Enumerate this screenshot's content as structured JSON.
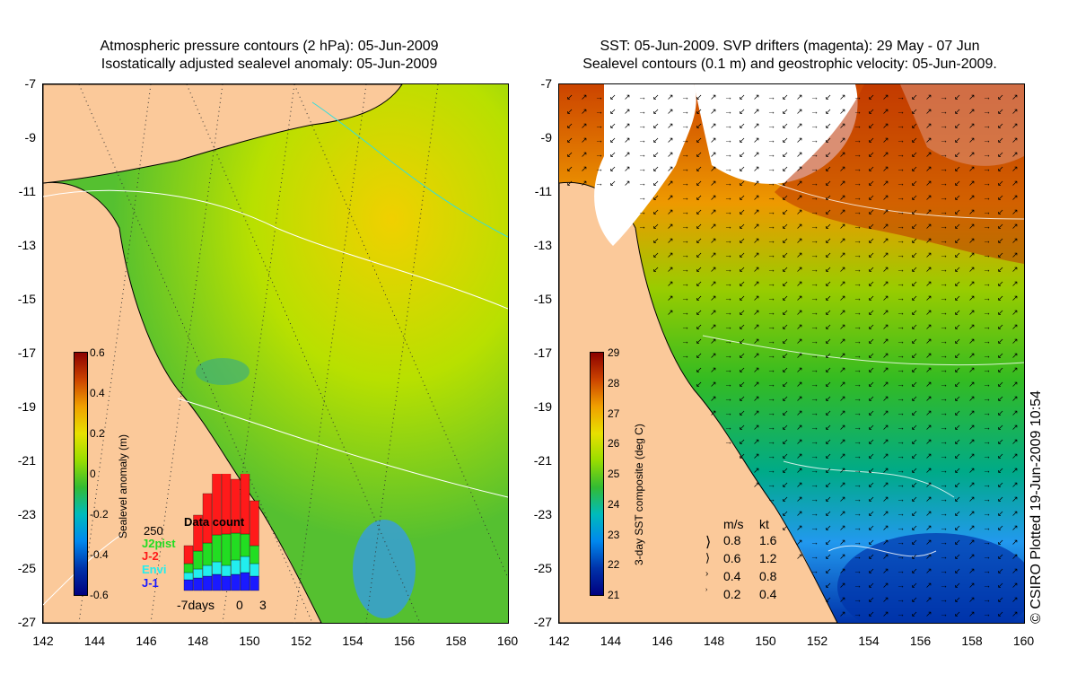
{
  "left": {
    "title_line1": "Atmospheric pressure contours (2 hPa): 05-Jun-2009",
    "title_line2": "Isostatically adjusted sealevel anomaly: 05-Jun-2009",
    "colorbar_label": "Sealevel anomaly (m)",
    "colorbar_ticks": [
      "0.6",
      "0.4",
      "0.2",
      "0",
      "-0.2",
      "-0.4",
      "-0.6"
    ],
    "inset": {
      "title": "Data count",
      "max_label": "250",
      "missions": [
        "J2pist",
        "J-2",
        "Envi",
        "J-1"
      ],
      "colors": {
        "J2pist": "#22dd22",
        "J-2": "#ff1a1a",
        "Envi": "#22eeee",
        "J-1": "#1a1aff"
      },
      "x_labels": [
        "-7days",
        "0",
        "3"
      ]
    }
  },
  "right": {
    "title_line1": "SST: 05-Jun-2009. SVP drifters (magenta): 29 May - 07 Jun",
    "title_line2": "Sealevel contours (0.1 m) and geostrophic velocity: 05-Jun-2009.",
    "colorbar_label": "3-day SST composite (deg C)",
    "colorbar_ticks": [
      "29",
      "28",
      "27",
      "26",
      "25",
      "24",
      "23",
      "22",
      "21"
    ],
    "vector_legend": {
      "header_ms": "m/s",
      "header_kt": "kt",
      "rows": [
        {
          "ms": "0.8",
          "kt": "1.6"
        },
        {
          "ms": "0.6",
          "kt": "1.2"
        },
        {
          "ms": "0.4",
          "kt": "0.8"
        },
        {
          "ms": "0.2",
          "kt": "0.4"
        }
      ]
    }
  },
  "axes": {
    "x_ticks": [
      "142",
      "144",
      "146",
      "148",
      "150",
      "152",
      "154",
      "156",
      "158",
      "160"
    ],
    "y_ticks": [
      "-7",
      "-9",
      "-11",
      "-13",
      "-15",
      "-17",
      "-19",
      "-21",
      "-23",
      "-25",
      "-27"
    ]
  },
  "credit": "© CSIRO Plotted 19-Jun-2009 10:54",
  "colors": {
    "land": "#fbc99a",
    "ocean_mid": "#66cc33",
    "ocean_high": "#ccee00"
  }
}
